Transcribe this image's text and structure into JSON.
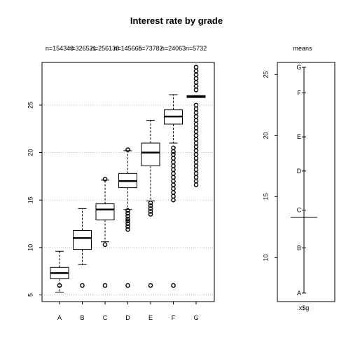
{
  "title": "Interest rate by grade",
  "chart_data": [
    {
      "type": "box",
      "categories": [
        "A",
        "B",
        "C",
        "D",
        "E",
        "F",
        "G"
      ],
      "counts_label": [
        "n=154348",
        "n=326521",
        "n=256138",
        "n=145665",
        "n=73782",
        "n=24063",
        "n=5732"
      ],
      "counts_label_raw": "n=154348326521n5256138n4145665n=73782n=24063n=5732",
      "yticks": [
        5,
        10,
        15,
        20,
        25
      ],
      "ylim": [
        4.3,
        29.5
      ],
      "gridlines": [
        5,
        10,
        15,
        20,
        25
      ],
      "grid": true,
      "boxes": [
        {
          "name": "A",
          "whisker_low": 5.3,
          "q1": 6.7,
          "median": 7.3,
          "q3": 7.9,
          "whisker_high": 9.6,
          "outliers": [
            6.0
          ]
        },
        {
          "name": "B",
          "whisker_low": 8.2,
          "q1": 9.8,
          "median": 11.0,
          "q3": 11.8,
          "whisker_high": 14.1,
          "outliers": [
            6.0
          ]
        },
        {
          "name": "C",
          "whisker_low": 10.6,
          "q1": 12.9,
          "median": 14.0,
          "q3": 14.6,
          "whisker_high": 17.1,
          "outliers": [
            6.0,
            10.3,
            17.2
          ]
        },
        {
          "name": "D",
          "whisker_low": 14.0,
          "q1": 16.3,
          "median": 17.0,
          "q3": 17.8,
          "whisker_high": 20.2,
          "outliers": [
            6.0,
            11.9,
            12.2,
            12.5,
            12.8,
            13.0,
            13.3,
            13.6,
            13.9,
            20.3
          ]
        },
        {
          "name": "E",
          "whisker_low": 14.9,
          "q1": 18.6,
          "median": 20.0,
          "q3": 21.0,
          "whisker_high": 23.4,
          "outliers": [
            6.0,
            13.5,
            13.8,
            14.1,
            14.4,
            14.7
          ]
        },
        {
          "name": "F",
          "whisker_low": 21.0,
          "q1": 23.0,
          "median": 23.8,
          "q3": 24.5,
          "whisker_high": 26.1,
          "outliers": [
            6.0,
            15.0,
            15.4,
            15.8,
            16.2,
            16.6,
            17.0,
            17.4,
            17.8,
            18.2,
            18.6,
            19.0,
            19.4,
            19.8,
            20.1,
            20.5
          ]
        },
        {
          "name": "G",
          "whisker_low": 25.8,
          "q1": 25.8,
          "median": 25.9,
          "q3": 26.0,
          "whisker_high": 26.0,
          "outliers": [
            16.6,
            17.0,
            17.4,
            17.8,
            18.2,
            18.6,
            19.0,
            19.4,
            19.8,
            20.2,
            20.6,
            21.0,
            21.4,
            21.8,
            22.2,
            22.6,
            23.0,
            23.4,
            23.8,
            24.2,
            24.6,
            25.0,
            26.6,
            27.0,
            27.4,
            27.8,
            28.2,
            28.6,
            29.0
          ]
        }
      ]
    },
    {
      "type": "scatter",
      "title": "means",
      "xlabel": "x$g",
      "yticks": [
        10,
        15,
        20,
        25
      ],
      "ylim": [
        6.4,
        26.0
      ],
      "grand_mean": 13.3,
      "points": [
        {
          "label": "A",
          "value": 7.1
        },
        {
          "label": "B",
          "value": 10.8
        },
        {
          "label": "C",
          "value": 13.9
        },
        {
          "label": "D",
          "value": 17.1
        },
        {
          "label": "E",
          "value": 19.9
        },
        {
          "label": "F",
          "value": 23.5
        },
        {
          "label": "G",
          "value": 25.6
        }
      ]
    }
  ]
}
